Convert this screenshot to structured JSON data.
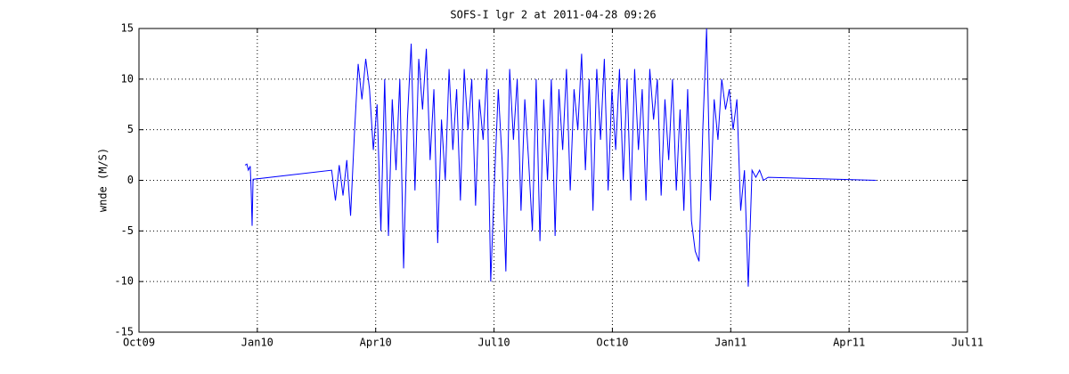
{
  "chart_data": {
    "type": "line",
    "title": "SOFS-I lgr 2 at 2011-04-28 09:26",
    "y_label": "wnde (M/S)",
    "x": [
      2009.974,
      2009.978,
      2009.981,
      2009.985,
      2009.987,
      2009.989,
      2009.991,
      2010.157,
      2010.165,
      2010.173,
      2010.181,
      2010.189,
      2010.197,
      2010.205,
      2010.213,
      2010.221,
      2010.229,
      2010.237,
      2010.245,
      2010.253,
      2010.261,
      2010.269,
      2010.277,
      2010.285,
      2010.293,
      2010.301,
      2010.309,
      2010.317,
      2010.325,
      2010.333,
      2010.341,
      2010.349,
      2010.357,
      2010.365,
      2010.373,
      2010.381,
      2010.389,
      2010.397,
      2010.405,
      2010.413,
      2010.421,
      2010.429,
      2010.437,
      2010.445,
      2010.453,
      2010.461,
      2010.469,
      2010.477,
      2010.485,
      2010.493,
      2010.501,
      2010.509,
      2010.517,
      2010.525,
      2010.533,
      2010.541,
      2010.549,
      2010.557,
      2010.565,
      2010.573,
      2010.581,
      2010.589,
      2010.597,
      2010.605,
      2010.613,
      2010.621,
      2010.629,
      2010.637,
      2010.645,
      2010.653,
      2010.661,
      2010.669,
      2010.677,
      2010.685,
      2010.693,
      2010.701,
      2010.709,
      2010.717,
      2010.725,
      2010.733,
      2010.741,
      2010.749,
      2010.757,
      2010.765,
      2010.773,
      2010.781,
      2010.789,
      2010.797,
      2010.805,
      2010.813,
      2010.821,
      2010.829,
      2010.837,
      2010.845,
      2010.853,
      2010.861,
      2010.869,
      2010.877,
      2010.885,
      2010.893,
      2010.901,
      2010.909,
      2010.917,
      2010.925,
      2010.933,
      2010.941,
      2010.949,
      2010.957,
      2010.965,
      2010.973,
      2010.981,
      2010.989,
      2010.997,
      2011.005,
      2011.013,
      2011.021,
      2011.029,
      2011.037,
      2011.045,
      2011.053,
      2011.061,
      2011.069,
      2011.079,
      2011.307
    ],
    "series": [
      {
        "name": "wnde",
        "color": "#0000ff",
        "values": [
          1.5,
          1.6,
          1.0,
          1.4,
          -1,
          -4.5,
          0.1,
          1.0,
          -2,
          1.5,
          -1.5,
          2,
          -3.5,
          4.5,
          11.5,
          8,
          12,
          9,
          3,
          7.5,
          -5,
          10,
          -5.5,
          8,
          1,
          10,
          -8.7,
          6,
          13.5,
          -1,
          12,
          7,
          13,
          2,
          9,
          -6.2,
          6,
          0,
          11,
          3,
          9,
          -2,
          11,
          5,
          10,
          -2.5,
          8,
          4,
          11,
          -10,
          0,
          9,
          2,
          -9,
          11,
          4,
          10,
          -3,
          8,
          2,
          -5,
          10,
          -6,
          8,
          0,
          10,
          -5.5,
          9,
          3,
          11,
          -1,
          9,
          5,
          12.5,
          1,
          10,
          -3,
          11,
          4,
          12,
          -1,
          9,
          3,
          11,
          0,
          10,
          -2,
          11,
          3,
          9,
          -2,
          11,
          6,
          10,
          -1.5,
          8,
          2,
          10,
          -1,
          7,
          -3,
          9,
          -4,
          -7,
          -8,
          5,
          15,
          -2,
          8,
          4,
          10,
          7,
          9,
          5,
          8,
          -3,
          1,
          -10.5,
          1,
          0.3,
          1,
          0,
          0.3,
          0
        ]
      }
    ],
    "xlim": [
      2009.75,
      2011.5
    ],
    "xticks": [
      {
        "value": 2009.75,
        "label": "Oct09"
      },
      {
        "value": 2010,
        "label": "Jan10"
      },
      {
        "value": 2010.25,
        "label": "Apr10"
      },
      {
        "value": 2010.5,
        "label": "Jul10"
      },
      {
        "value": 2010.75,
        "label": "Oct10"
      },
      {
        "value": 2011,
        "label": "Jan11"
      },
      {
        "value": 2011.25,
        "label": "Apr11"
      },
      {
        "value": 2011.5,
        "label": "Jul11"
      }
    ],
    "ylim": [
      -15,
      15
    ],
    "yticks": [
      -15,
      -10,
      -5,
      0,
      5,
      10,
      15
    ],
    "grid": true
  }
}
